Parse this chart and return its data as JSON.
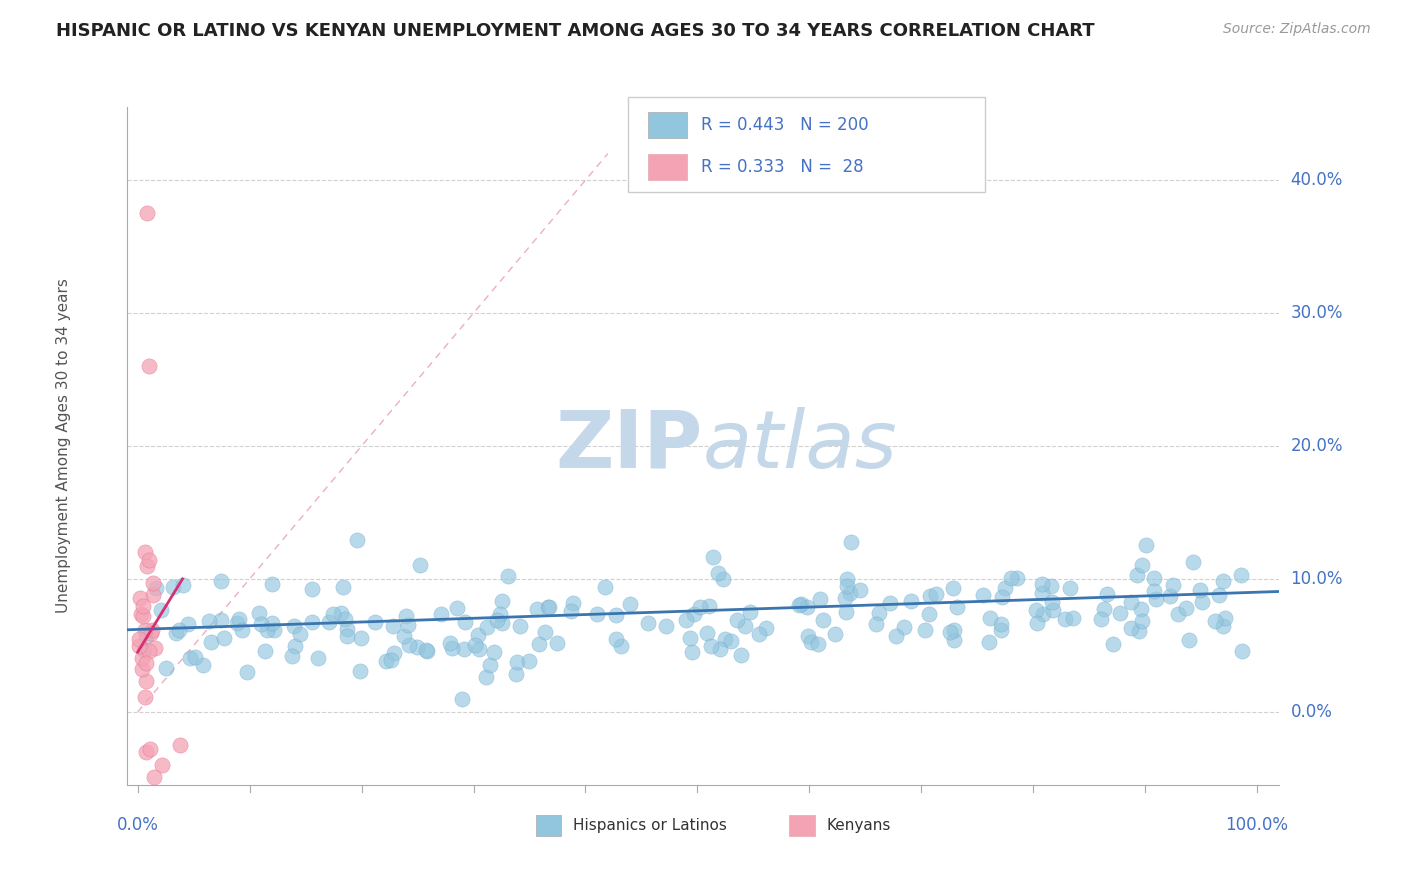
{
  "title": "HISPANIC OR LATINO VS KENYAN UNEMPLOYMENT AMONG AGES 30 TO 34 YEARS CORRELATION CHART",
  "source": "Source: ZipAtlas.com",
  "ylabel": "Unemployment Among Ages 30 to 34 years",
  "ytick_labels": [
    "0.0%",
    "10.0%",
    "20.0%",
    "30.0%",
    "40.0%"
  ],
  "ytick_values": [
    0.0,
    0.1,
    0.2,
    0.3,
    0.4
  ],
  "xlim": [
    -0.01,
    1.02
  ],
  "ylim": [
    -0.055,
    0.455
  ],
  "blue_R": 0.443,
  "blue_N": 200,
  "pink_R": 0.333,
  "pink_N": 28,
  "blue_color": "#92c5de",
  "blue_edge_color": "#5b9dc9",
  "blue_line_color": "#3a75b0",
  "pink_color": "#f4a3b5",
  "pink_edge_color": "#e06080",
  "pink_line_color": "#d63070",
  "pink_dash_color": "#e8a0b8",
  "watermark_zip": "ZIP",
  "watermark_atlas": "atlas",
  "watermark_color_zip": "#c5d8ea",
  "watermark_color_atlas": "#c5d8ea",
  "background_color": "#ffffff",
  "title_color": "#222222",
  "axis_label_color": "#4472c4",
  "grid_color": "#cccccc",
  "blue_seed": 42,
  "pink_seed": 99
}
